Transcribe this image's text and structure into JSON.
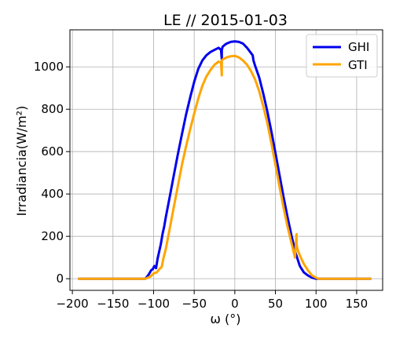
{
  "chart_data": {
    "type": "line",
    "title": "LE // 2015-01-03",
    "xlabel": "ω (°)",
    "ylabel": "Irradiancia(W/m²)",
    "xlim": [
      -203,
      182
    ],
    "ylim": [
      -55,
      1175
    ],
    "xticks": [
      -200,
      -150,
      -100,
      -50,
      0,
      50,
      100,
      150
    ],
    "xtick_labels": [
      "−200",
      "−150",
      "−100",
      "−50",
      "0",
      "50",
      "100",
      "150"
    ],
    "yticks": [
      0,
      200,
      400,
      600,
      800,
      1000
    ],
    "ytick_labels": [
      "0",
      "200",
      "400",
      "600",
      "800",
      "1000"
    ],
    "grid": true,
    "legend_position": "top-right",
    "series": [
      {
        "name": "GHI",
        "color": "#0000ee",
        "x": [
          -192,
          -150,
          -110,
          -106,
          -103,
          -101,
          -99,
          -97,
          -95,
          -93,
          -91,
          -89,
          -87,
          -85,
          -80,
          -75,
          -70,
          -65,
          -60,
          -55,
          -50,
          -45,
          -40,
          -35,
          -30,
          -25,
          -20,
          -17,
          -16,
          -16,
          -15,
          -12,
          -10,
          -5,
          0,
          5,
          10,
          15,
          20,
          22,
          23,
          25,
          30,
          35,
          40,
          45,
          50,
          55,
          60,
          65,
          70,
          75,
          80,
          85,
          90,
          95,
          100,
          103,
          105,
          110,
          150,
          167
        ],
        "y": [
          0,
          0,
          0,
          20,
          40,
          45,
          60,
          50,
          95,
          130,
          165,
          210,
          245,
          290,
          390,
          490,
          590,
          685,
          775,
          855,
          930,
          990,
          1030,
          1055,
          1070,
          1080,
          1090,
          1080,
          1035,
          1080,
          1095,
          1105,
          1110,
          1118,
          1120,
          1118,
          1110,
          1090,
          1065,
          1055,
          1030,
          1005,
          950,
          875,
          790,
          695,
          595,
          490,
          385,
          290,
          200,
          120,
          60,
          30,
          15,
          5,
          0,
          0,
          0,
          0,
          0,
          0
        ]
      },
      {
        "name": "GTI",
        "color": "#ffa500",
        "x": [
          -192,
          -150,
          -110,
          -104,
          -100,
          -96,
          -93,
          -90,
          -88,
          -85,
          -80,
          -75,
          -70,
          -65,
          -60,
          -55,
          -50,
          -45,
          -40,
          -35,
          -30,
          -25,
          -20,
          -17,
          -16,
          -16,
          -15,
          -10,
          -5,
          0,
          5,
          10,
          15,
          20,
          25,
          30,
          35,
          40,
          45,
          50,
          55,
          60,
          65,
          70,
          74,
          75,
          76,
          76,
          77,
          80,
          85,
          90,
          95,
          100,
          103,
          105,
          110,
          150,
          167
        ],
        "y": [
          0,
          0,
          0,
          10,
          25,
          30,
          45,
          55,
          95,
          140,
          240,
          340,
          440,
          540,
          625,
          705,
          780,
          850,
          910,
          955,
          985,
          1010,
          1025,
          1020,
          960,
          1030,
          1035,
          1045,
          1050,
          1052,
          1045,
          1030,
          1010,
          980,
          940,
          885,
          815,
          735,
          640,
          540,
          435,
          335,
          245,
          165,
          100,
          155,
          210,
          165,
          140,
          110,
          70,
          40,
          15,
          5,
          0,
          0,
          0,
          0,
          0
        ]
      }
    ]
  }
}
